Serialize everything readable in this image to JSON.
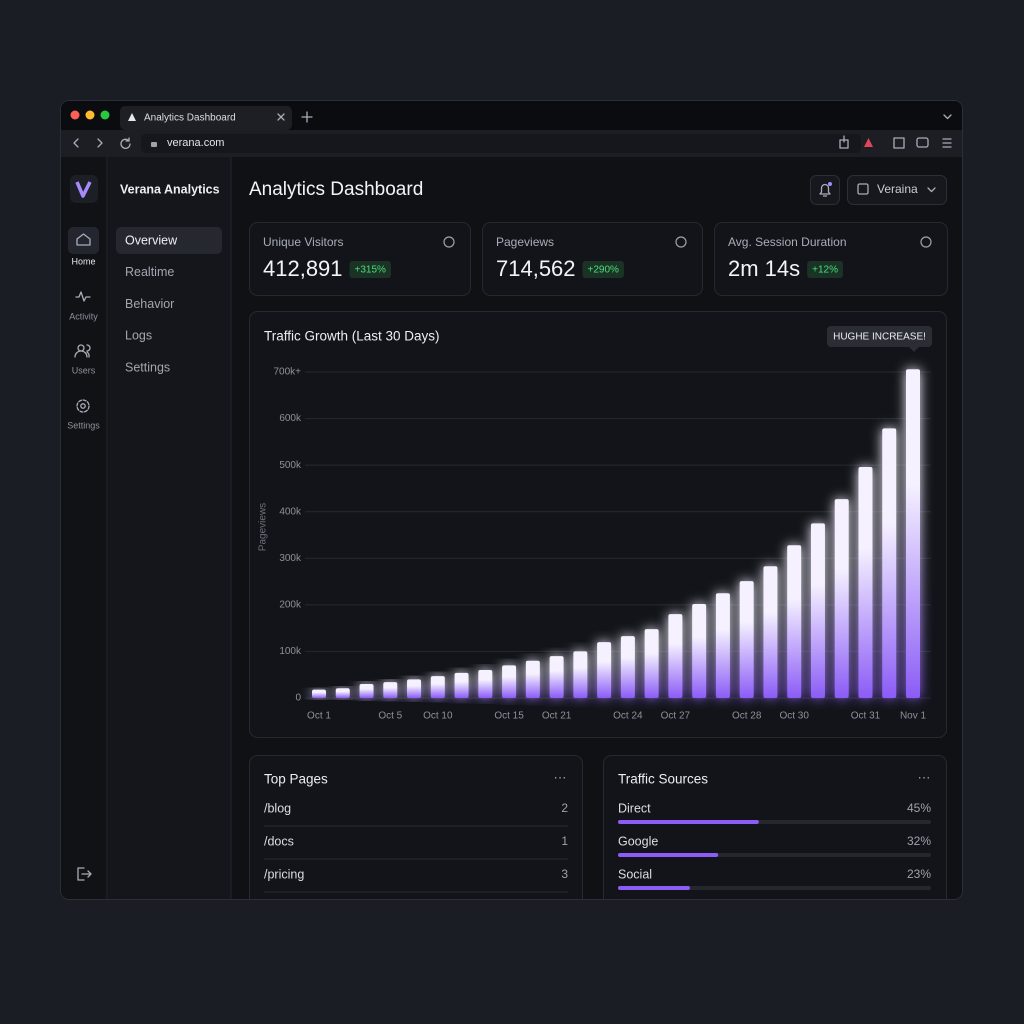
{
  "browser": {
    "tab_title": "Analytics Dashboard",
    "url": "verana.com"
  },
  "rail": [
    {
      "label": "Home"
    },
    {
      "label": "Activity"
    },
    {
      "label": "Users"
    },
    {
      "label": "Settings"
    }
  ],
  "brand": "Verana Analytics",
  "nav": [
    "Overview",
    "Realtime",
    "Behavior",
    "Logs",
    "Settings"
  ],
  "header": {
    "title": "Analytics Dashboard",
    "account": "Veraina"
  },
  "stats": [
    {
      "label": "Unique Visitors",
      "value": "412,891",
      "change": "+315%"
    },
    {
      "label": "Pageviews",
      "value": "714,562",
      "change": "+290%"
    },
    {
      "label": "Avg. Session Duration",
      "value": "2m 14s",
      "change": "+12%"
    }
  ],
  "chart_data": {
    "type": "bar",
    "title": "Traffic Growth (Last 30 Days)",
    "ylabel": "Pageviews",
    "annotation": "HUGHE INCREASE!",
    "categories": [
      "Oct 1",
      null,
      null,
      "Oct 5",
      null,
      "Oct 10",
      null,
      null,
      "Oct 15",
      null,
      "Oct 21",
      null,
      null,
      "Oct 24",
      null,
      "Oct 27",
      null,
      null,
      "Oct 28",
      null,
      "Oct 30",
      null,
      null,
      "Oct 31",
      null,
      "Nov 1"
    ],
    "values": [
      18000,
      21000,
      30000,
      34000,
      40000,
      47000,
      54000,
      60000,
      70000,
      80000,
      90000,
      100000,
      120000,
      133000,
      148000,
      180000,
      202000,
      225000,
      251000,
      283000,
      328000,
      375000,
      427000,
      496000,
      579000,
      706000
    ],
    "color": "#f5f1ff",
    "glow": "#8b5cf6",
    "ylim": [
      0,
      725000
    ],
    "yticks": [
      0,
      {
        "value": 100000,
        "label": "100k"
      },
      {
        "value": 200000,
        "label": "200k"
      },
      {
        "value": 300000,
        "label": "300k"
      },
      {
        "value": 400000,
        "label": "400k"
      },
      {
        "value": 500000,
        "label": "500k"
      },
      {
        "value": 600000,
        "label": "600k"
      },
      {
        "value": 700000,
        "label": "700k+"
      }
    ],
    "grid": true
  },
  "top_pages": {
    "title": "Top Pages",
    "rows": [
      {
        "page": "/blog",
        "value": 2
      },
      {
        "page": "/docs",
        "value": 1
      },
      {
        "page": "/pricing",
        "value": 3
      }
    ]
  },
  "traffic_sources": {
    "title": "Traffic Sources",
    "rows": [
      {
        "name": "Direct",
        "value": 45,
        "value_label": "45%"
      },
      {
        "name": "Google",
        "value": 32,
        "value_label": "32%"
      },
      {
        "name": "Social",
        "value": 23,
        "value_label": "23%"
      }
    ]
  }
}
